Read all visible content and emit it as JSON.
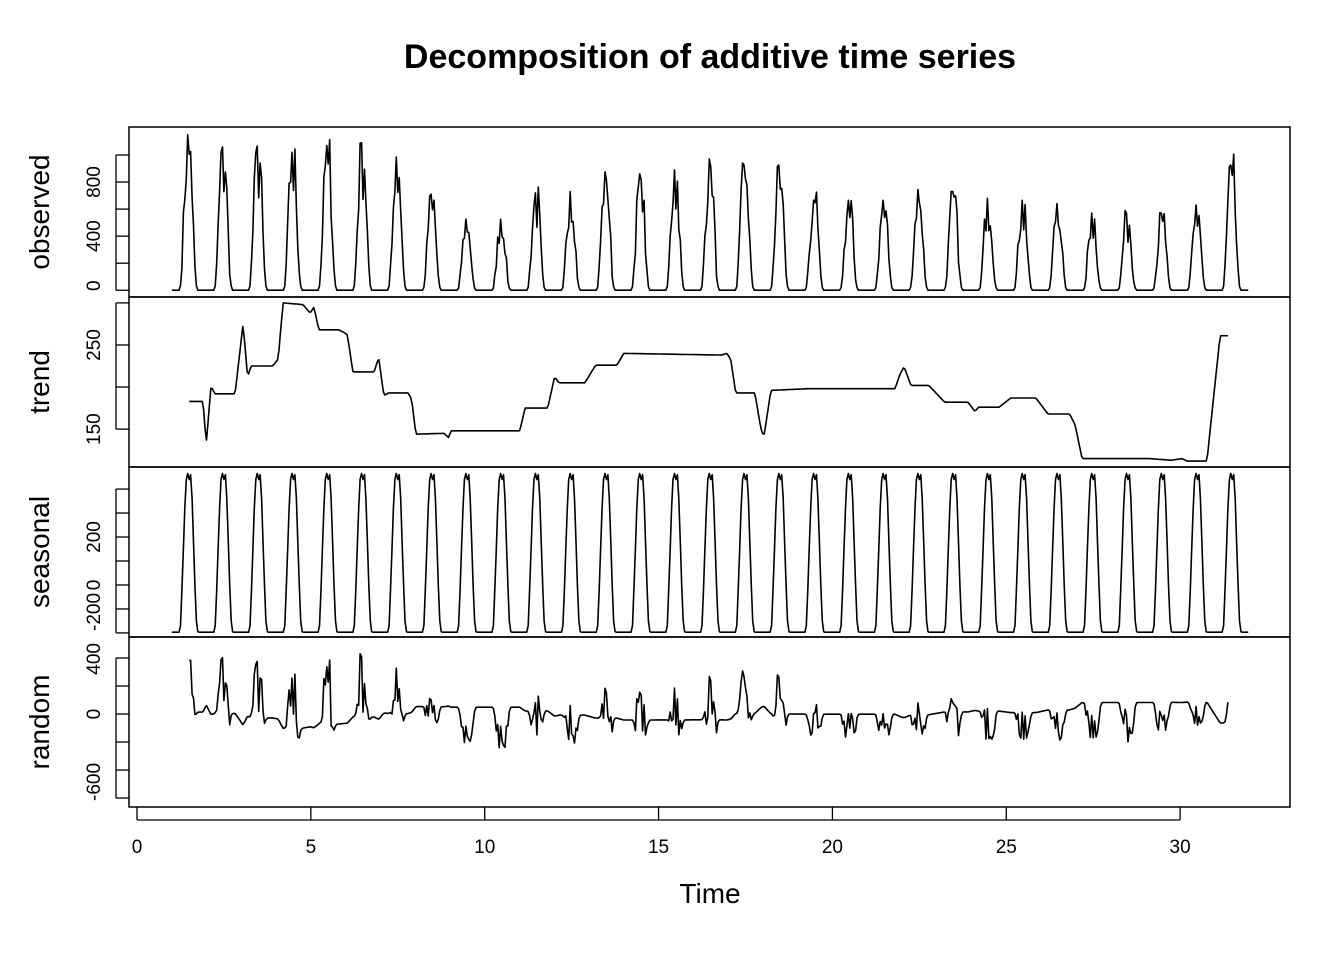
{
  "chart_data": {
    "type": "line",
    "title": "Decomposition of additive time series",
    "xlabel": "Time",
    "xlim": [
      -0.23,
      33.16
    ],
    "x_ticks": [
      0,
      5,
      10,
      15,
      20,
      25,
      30
    ],
    "x_tick_labels": [
      "0",
      "5",
      "10",
      "15",
      "20",
      "25",
      "30"
    ],
    "frequency": 24,
    "start": 1,
    "line_color": "#000000",
    "panels": [
      {
        "name": "observed",
        "ylabel": "observed",
        "ylim": [
          -50,
          1207
        ],
        "ticks": [
          0,
          200,
          400,
          600,
          800,
          1000
        ],
        "tick_labels": {
          "0": "0",
          "400": "400",
          "800": "800"
        }
      },
      {
        "name": "trend",
        "ylabel": "trend",
        "ylim": [
          105,
          307
        ],
        "ticks": [
          150,
          200,
          250,
          300
        ],
        "tick_labels": {
          "150": "150",
          "250": "250"
        }
      },
      {
        "name": "seasonal",
        "ylabel": "seasonal",
        "ylim": [
          -217,
          492
        ],
        "ticks": [
          -200,
          -100,
          0,
          100,
          200,
          300,
          400
        ],
        "tick_labels": {
          "-200": "-200",
          "0": "0",
          "200": "200"
        }
      },
      {
        "name": "random",
        "ylabel": "random",
        "ylim": [
          -664,
          550
        ],
        "ticks": [
          -600,
          -400,
          -200,
          0,
          200,
          400
        ],
        "tick_labels": {
          "-600": "-600",
          "0": "0",
          "400": "400"
        }
      }
    ],
    "observed_daily_peaks": [
      1150,
      1060,
      1065,
      1020,
      1070,
      1090,
      985,
      710,
      525,
      525,
      720,
      730,
      875,
      860,
      890,
      970,
      925,
      925,
      665,
      665,
      665,
      745,
      730,
      680,
      665,
      640,
      570,
      570,
      570,
      630,
      925
    ],
    "observed_daily_profile": [
      0,
      0,
      0,
      0,
      0,
      0,
      0.03,
      0.2,
      0.45,
      0.7,
      0.9,
      1.0,
      0.85,
      0.95,
      0.7,
      0.4,
      0.15,
      0.03,
      0,
      0,
      0,
      0,
      0,
      0
    ],
    "seasonal_profile": [
      -197,
      -197,
      -197,
      -197,
      -197,
      -197,
      -170,
      -20,
      150,
      320,
      440,
      465,
      440,
      460,
      360,
      180,
      0,
      -150,
      -195,
      -197,
      -197,
      -197,
      -197,
      -197
    ],
    "trend_points": [
      [
        1.48,
        183
      ],
      [
        1.9,
        183
      ],
      [
        1.99,
        132
      ],
      [
        2.13,
        201
      ],
      [
        2.24,
        192
      ],
      [
        2.82,
        192
      ],
      [
        3.05,
        275
      ],
      [
        3.18,
        212
      ],
      [
        3.28,
        225
      ],
      [
        3.9,
        225
      ],
      [
        4.06,
        233
      ],
      [
        4.2,
        300
      ],
      [
        4.77,
        298
      ],
      [
        4.98,
        288
      ],
      [
        5.09,
        295
      ],
      [
        5.23,
        268
      ],
      [
        5.8,
        268
      ],
      [
        5.95,
        265
      ],
      [
        6.05,
        262
      ],
      [
        6.21,
        218
      ],
      [
        6.82,
        218
      ],
      [
        6.95,
        235
      ],
      [
        7.1,
        190
      ],
      [
        7.24,
        193
      ],
      [
        7.8,
        193
      ],
      [
        7.9,
        185
      ],
      [
        8.02,
        144
      ],
      [
        8.83,
        145
      ],
      [
        8.96,
        140
      ],
      [
        9.03,
        148
      ],
      [
        11.01,
        148
      ],
      [
        11.16,
        175
      ],
      [
        11.81,
        175
      ],
      [
        12.01,
        212
      ],
      [
        12.14,
        205
      ],
      [
        12.88,
        205
      ],
      [
        13.19,
        226
      ],
      [
        13.8,
        226
      ],
      [
        14.0,
        240
      ],
      [
        16.8,
        238
      ],
      [
        16.97,
        240
      ],
      [
        17.08,
        232
      ],
      [
        17.22,
        193
      ],
      [
        17.77,
        193
      ],
      [
        17.94,
        151
      ],
      [
        18.03,
        141
      ],
      [
        18.23,
        196
      ],
      [
        19.27,
        198
      ],
      [
        21.8,
        198
      ],
      [
        21.94,
        215
      ],
      [
        22.06,
        224
      ],
      [
        22.26,
        202
      ],
      [
        22.77,
        202
      ],
      [
        23.23,
        182
      ],
      [
        23.9,
        182
      ],
      [
        24.1,
        171
      ],
      [
        24.2,
        176
      ],
      [
        24.79,
        176
      ],
      [
        25.13,
        187
      ],
      [
        25.85,
        187
      ],
      [
        26.2,
        168
      ],
      [
        26.82,
        168
      ],
      [
        26.98,
        155
      ],
      [
        27.18,
        115
      ],
      [
        29.13,
        115
      ],
      [
        29.74,
        113
      ],
      [
        30.05,
        115
      ],
      [
        30.21,
        112
      ],
      [
        30.77,
        112
      ],
      [
        31.02,
        210
      ],
      [
        31.15,
        261
      ],
      [
        31.4,
        261
      ]
    ]
  }
}
